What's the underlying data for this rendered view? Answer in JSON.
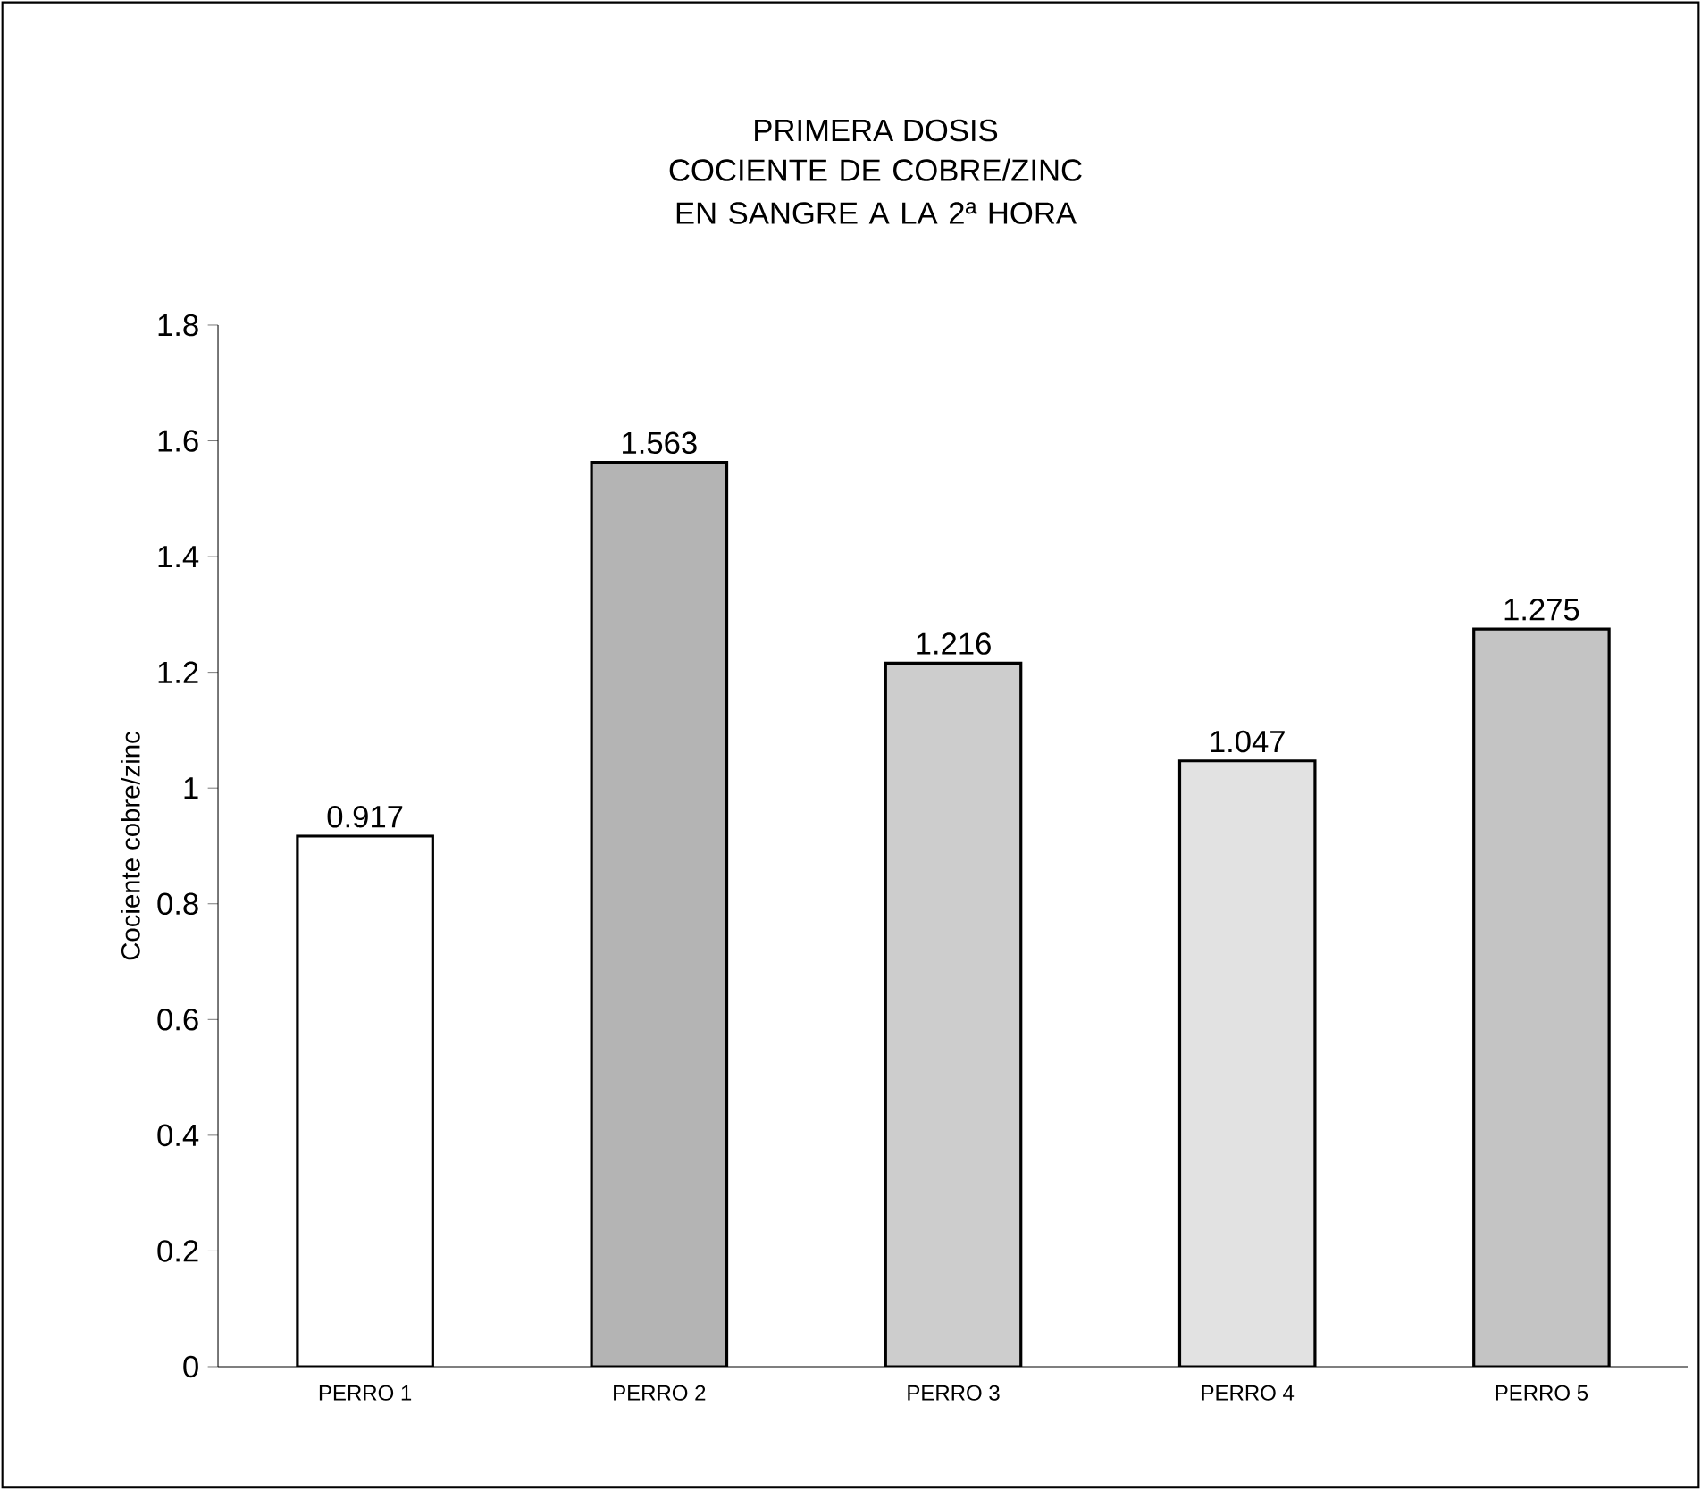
{
  "chart_data": {
    "type": "bar",
    "title": "PRIMERA DOSIS",
    "subtitle": "COCIENTE DE COBRE/ZINC EN SANGRE A LA 2ª HORA",
    "ylabel": "Cociente cobre/zinc",
    "categories": [
      "PERRO 1",
      "PERRO 2",
      "PERRO 3",
      "PERRO 4",
      "PERRO 5"
    ],
    "values": [
      0.917,
      1.563,
      1.216,
      1.047,
      1.275
    ],
    "colors": [
      "#ffffff",
      "#b4b4b4",
      "#cdcdcd",
      "#e2e2e2",
      "#c4c4c4"
    ],
    "ylim": [
      0,
      1.8
    ],
    "yticks": [
      0,
      0.2,
      0.4,
      0.6,
      0.8,
      1,
      1.2,
      1.4,
      1.6,
      1.8
    ],
    "data_labels": true,
    "grid": false
  }
}
